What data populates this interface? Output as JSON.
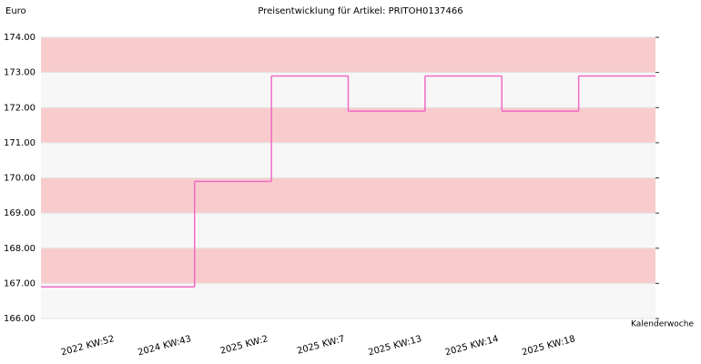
{
  "chart_data": {
    "type": "step",
    "title": "Preisentwicklung für Artikel: PRITOH0137466",
    "y_label": "Euro",
    "x_label": "Kalenderwoche",
    "categories": [
      null,
      "2022 KW:52",
      "2024 KW:43",
      "2025 KW:2",
      "2025 KW:7",
      "2025 KW:13",
      "2025 KW:14",
      "2025 KW:18"
    ],
    "values": [
      166.9,
      166.9,
      169.9,
      172.9,
      171.9,
      172.9,
      171.9,
      172.9
    ],
    "color": "#f06ac6",
    "ylim": [
      166,
      174
    ],
    "yticks": [
      {
        "value": 166,
        "label": "166.00"
      },
      {
        "value": 167,
        "label": "167.00"
      },
      {
        "value": 168,
        "label": "168.00"
      },
      {
        "value": 169,
        "label": "169.00"
      },
      {
        "value": 170,
        "label": "170.00"
      },
      {
        "value": 171,
        "label": "171.00"
      },
      {
        "value": 172,
        "label": "172.00"
      },
      {
        "value": 173,
        "label": "173.00"
      },
      {
        "value": 174,
        "label": "174.00"
      }
    ],
    "band_colors": [
      "#f7f7f7",
      "#f8cccc"
    ]
  }
}
